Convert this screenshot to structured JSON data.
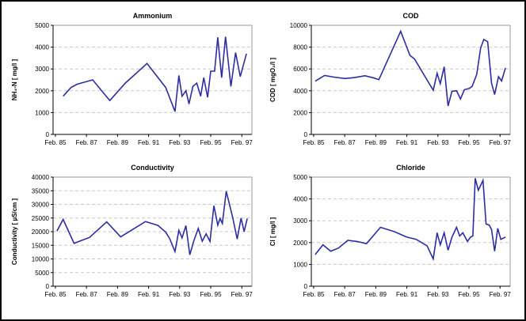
{
  "figure": {
    "background": "#ffffff",
    "frame_color": "#000000"
  },
  "colors": {
    "line": "#2d2da3",
    "grid": "#c9c9c9",
    "axis": "#000000",
    "plot_border": "#9a9a9a",
    "text": "#000000"
  },
  "chart_data": [
    {
      "type": "line",
      "title": "Ammonium",
      "ylabel": "NH₄-N [ mg/l ]",
      "ylim": [
        0,
        5000
      ],
      "ytick_step": 1000,
      "yticks": [
        0,
        1000,
        2000,
        3000,
        4000,
        5000
      ],
      "xlim": [
        84.85,
        97.65
      ],
      "xtick_years": [
        85,
        87,
        89,
        91,
        93,
        95,
        97
      ],
      "xtick_labels": [
        "Feb. 85",
        "Feb. 87",
        "Feb. 89",
        "Feb. 91",
        "Feb. 93",
        "Feb. 95",
        "Feb. 97"
      ],
      "grid": "horizontal-dashed",
      "legend": "none",
      "points": [
        [
          85.5,
          1750
        ],
        [
          86.0,
          2150
        ],
        [
          86.4,
          2300
        ],
        [
          87.4,
          2500
        ],
        [
          88.5,
          1550
        ],
        [
          89.5,
          2350
        ],
        [
          90.9,
          3250
        ],
        [
          92.1,
          2150
        ],
        [
          92.7,
          1050
        ],
        [
          92.95,
          2700
        ],
        [
          93.15,
          1750
        ],
        [
          93.4,
          2000
        ],
        [
          93.6,
          1400
        ],
        [
          93.85,
          2200
        ],
        [
          94.1,
          2350
        ],
        [
          94.35,
          1750
        ],
        [
          94.55,
          2600
        ],
        [
          94.8,
          1700
        ],
        [
          95.0,
          2900
        ],
        [
          95.25,
          2900
        ],
        [
          95.45,
          4450
        ],
        [
          95.7,
          2600
        ],
        [
          95.95,
          4480
        ],
        [
          96.3,
          2200
        ],
        [
          96.6,
          3750
        ],
        [
          96.9,
          2650
        ],
        [
          97.3,
          3700
        ]
      ]
    },
    {
      "type": "line",
      "title": "COD",
      "ylabel": "COD [ mgO₂/l ]",
      "ylim": [
        0,
        10000
      ],
      "ytick_step": 2000,
      "yticks": [
        0,
        2000,
        4000,
        6000,
        8000,
        10000
      ],
      "xlim": [
        84.85,
        97.65
      ],
      "xtick_years": [
        85,
        87,
        89,
        91,
        93,
        95,
        97
      ],
      "xtick_labels": [
        "Feb. 85",
        "Feb. 87",
        "Feb. 89",
        "Feb. 91",
        "Feb. 93",
        "Feb. 95",
        "Feb. 97"
      ],
      "grid": "horizontal-dashed",
      "legend": "none",
      "points": [
        [
          85.1,
          4880
        ],
        [
          85.7,
          5400
        ],
        [
          86.3,
          5250
        ],
        [
          87.0,
          5120
        ],
        [
          87.6,
          5200
        ],
        [
          88.3,
          5380
        ],
        [
          88.8,
          5200
        ],
        [
          89.2,
          5020
        ],
        [
          90.6,
          9450
        ],
        [
          91.2,
          7250
        ],
        [
          91.5,
          6900
        ],
        [
          92.7,
          4050
        ],
        [
          92.95,
          5600
        ],
        [
          93.15,
          4650
        ],
        [
          93.4,
          6200
        ],
        [
          93.65,
          2600
        ],
        [
          93.9,
          3950
        ],
        [
          94.2,
          4000
        ],
        [
          94.45,
          3250
        ],
        [
          94.7,
          4100
        ],
        [
          95.0,
          4200
        ],
        [
          95.2,
          4400
        ],
        [
          95.5,
          5500
        ],
        [
          95.75,
          7900
        ],
        [
          95.95,
          8700
        ],
        [
          96.2,
          8500
        ],
        [
          96.45,
          4700
        ],
        [
          96.65,
          3650
        ],
        [
          96.9,
          5300
        ],
        [
          97.1,
          4900
        ],
        [
          97.35,
          6100
        ]
      ]
    },
    {
      "type": "line",
      "title": "Conductivity",
      "ylabel": "Conductivity [ µS/cm ]",
      "ylim": [
        0,
        40000
      ],
      "ytick_step": 5000,
      "yticks": [
        0,
        5000,
        10000,
        15000,
        20000,
        25000,
        30000,
        35000,
        40000
      ],
      "xlim": [
        84.85,
        97.65
      ],
      "xtick_years": [
        85,
        87,
        89,
        91,
        93,
        95,
        97
      ],
      "xtick_labels": [
        "Feb. 85",
        "Feb. 87",
        "Feb. 89",
        "Feb. 91",
        "Feb. 93",
        "Feb. 95",
        "Feb. 97"
      ],
      "grid": "horizontal-dashed",
      "legend": "none",
      "points": [
        [
          85.1,
          20200
        ],
        [
          85.5,
          24500
        ],
        [
          86.2,
          15700
        ],
        [
          86.6,
          16600
        ],
        [
          87.2,
          17900
        ],
        [
          88.3,
          23600
        ],
        [
          89.2,
          18100
        ],
        [
          90.8,
          23700
        ],
        [
          91.6,
          22300
        ],
        [
          92.1,
          19800
        ],
        [
          92.35,
          17500
        ],
        [
          92.7,
          12700
        ],
        [
          92.95,
          20500
        ],
        [
          93.15,
          17700
        ],
        [
          93.4,
          22200
        ],
        [
          93.65,
          11500
        ],
        [
          93.9,
          16500
        ],
        [
          94.2,
          21200
        ],
        [
          94.45,
          16500
        ],
        [
          94.7,
          19200
        ],
        [
          94.95,
          16400
        ],
        [
          95.2,
          29500
        ],
        [
          95.45,
          22400
        ],
        [
          95.6,
          24800
        ],
        [
          95.75,
          23000
        ],
        [
          96.0,
          34800
        ],
        [
          96.4,
          25500
        ],
        [
          96.7,
          17300
        ],
        [
          96.95,
          25000
        ],
        [
          97.15,
          20000
        ],
        [
          97.35,
          24800
        ]
      ]
    },
    {
      "type": "line",
      "title": "Chloride",
      "ylabel": "Cl [ mg/l ]",
      "ylim": [
        0,
        5000
      ],
      "ytick_step": 1000,
      "yticks": [
        0,
        1000,
        2000,
        3000,
        4000,
        5000
      ],
      "xlim": [
        84.85,
        97.65
      ],
      "xtick_years": [
        85,
        87,
        89,
        91,
        93,
        95,
        97
      ],
      "xtick_labels": [
        "Feb. 85",
        "Feb. 87",
        "Feb. 89",
        "Feb. 91",
        "Feb. 93",
        "Feb. 95",
        "Feb. 97"
      ],
      "grid": "horizontal-dashed",
      "legend": "none",
      "points": [
        [
          85.1,
          1450
        ],
        [
          85.6,
          1900
        ],
        [
          86.1,
          1600
        ],
        [
          86.6,
          1750
        ],
        [
          87.2,
          2100
        ],
        [
          87.8,
          2050
        ],
        [
          88.4,
          1950
        ],
        [
          89.3,
          2700
        ],
        [
          90.2,
          2500
        ],
        [
          91.0,
          2250
        ],
        [
          91.6,
          2150
        ],
        [
          92.3,
          1850
        ],
        [
          92.7,
          1250
        ],
        [
          92.95,
          2450
        ],
        [
          93.15,
          1900
        ],
        [
          93.4,
          2450
        ],
        [
          93.65,
          1650
        ],
        [
          93.9,
          2250
        ],
        [
          94.2,
          2700
        ],
        [
          94.4,
          2300
        ],
        [
          94.6,
          2450
        ],
        [
          94.9,
          2050
        ],
        [
          95.1,
          2250
        ],
        [
          95.25,
          2300
        ],
        [
          95.4,
          4950
        ],
        [
          95.6,
          4400
        ],
        [
          95.9,
          4850
        ],
        [
          96.1,
          2850
        ],
        [
          96.3,
          2800
        ],
        [
          96.45,
          2600
        ],
        [
          96.65,
          1600
        ],
        [
          96.85,
          2650
        ],
        [
          97.05,
          2150
        ],
        [
          97.35,
          2250
        ]
      ]
    }
  ]
}
